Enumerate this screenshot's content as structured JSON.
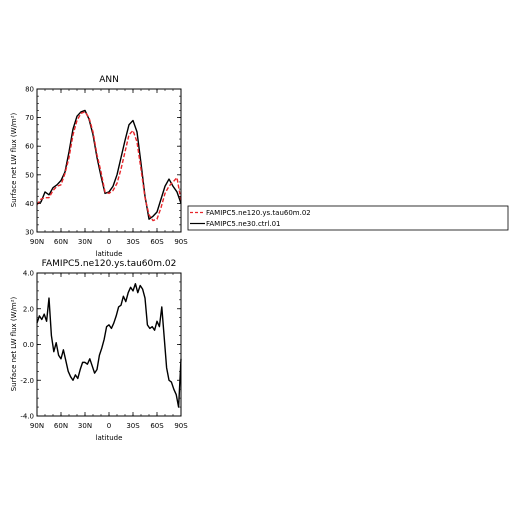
{
  "chart_data": [
    {
      "type": "line",
      "title": "ANN",
      "xlabel": "latitude",
      "ylabel": "Surface net LW flux (W/m²)",
      "ylim": [
        30,
        80
      ],
      "yticks": [
        "30",
        "40",
        "50",
        "60",
        "70",
        "80"
      ],
      "xlim": [
        90,
        -90
      ],
      "xticks": [
        "90N",
        "60N",
        "30N",
        "0",
        "30S",
        "60S",
        "90S"
      ],
      "grid": false,
      "legend_placement": "right, outside plot",
      "series": [
        {
          "name": "FAMIPC5.ne120.ys.tau60m.02",
          "color": "#e8262b",
          "dash": "dashed",
          "x": [
            90,
            85,
            80,
            75,
            70,
            65,
            60,
            55,
            50,
            45,
            40,
            35,
            30,
            25,
            20,
            15,
            10,
            5,
            0,
            -5,
            -10,
            -15,
            -20,
            -25,
            -30,
            -35,
            -40,
            -45,
            -50,
            -55,
            -60,
            -65,
            -70,
            -75,
            -80,
            -85,
            -90
          ],
          "y": [
            39.5,
            41.5,
            42,
            42,
            44.5,
            46,
            46.5,
            50.5,
            56,
            64,
            69,
            71.5,
            72,
            70,
            65,
            57,
            51,
            44,
            43.5,
            44.5,
            47,
            52,
            58,
            64,
            65.5,
            61.5,
            52,
            42,
            36,
            34,
            34.5,
            38.5,
            43.5,
            46,
            47.5,
            49,
            41
          ]
        },
        {
          "name": "FAMIPC5.ne30.ctrl.01",
          "color": "#000000",
          "dash": "solid",
          "x": [
            90,
            85,
            80,
            75,
            70,
            65,
            60,
            55,
            50,
            45,
            40,
            35,
            30,
            25,
            20,
            15,
            10,
            5,
            0,
            -5,
            -10,
            -15,
            -20,
            -25,
            -30,
            -35,
            -40,
            -45,
            -50,
            -55,
            -60,
            -65,
            -70,
            -75,
            -80,
            -85,
            -90
          ],
          "y": [
            40,
            40.5,
            44,
            43,
            45.5,
            46.5,
            48,
            51,
            58,
            66,
            70.5,
            72,
            72.5,
            69.5,
            64,
            56,
            49.5,
            43.5,
            44,
            46,
            50,
            56,
            62,
            67.5,
            69,
            65,
            54,
            42.5,
            34.5,
            35.5,
            37,
            41.5,
            46,
            48.5,
            46,
            44,
            40
          ]
        }
      ]
    },
    {
      "type": "line",
      "title": "FAMIPC5.ne120.ys.tau60m.02",
      "xlabel": "latitude",
      "ylabel": "Surface net LW flux (W/m²)",
      "ylim": [
        -4.0,
        4.0
      ],
      "yticks": [
        "-4.0",
        "-2.0",
        "0.0",
        "2.0",
        "4.0"
      ],
      "xlim": [
        90,
        -90
      ],
      "xticks": [
        "90N",
        "60N",
        "30N",
        "0",
        "30S",
        "60S",
        "90S"
      ],
      "grid": false,
      "series": [
        {
          "name": "",
          "color": "#000000",
          "dash": "solid",
          "x": [
            90,
            87,
            84,
            81,
            78,
            75,
            72,
            69,
            66,
            63,
            60,
            57,
            54,
            51,
            48,
            45,
            42,
            39,
            36,
            33,
            30,
            27,
            24,
            21,
            18,
            15,
            12,
            9,
            6,
            3,
            0,
            -3,
            -6,
            -9,
            -12,
            -15,
            -18,
            -21,
            -24,
            -27,
            -30,
            -33,
            -36,
            -39,
            -42,
            -45,
            -48,
            -51,
            -54,
            -57,
            -60,
            -63,
            -66,
            -69,
            -72,
            -75,
            -78,
            -81,
            -84,
            -87,
            -90
          ],
          "y": [
            1.2,
            1.6,
            1.4,
            1.7,
            1.3,
            2.6,
            0.5,
            -0.4,
            0.1,
            -0.6,
            -0.8,
            -0.3,
            -0.9,
            -1.5,
            -1.8,
            -2.0,
            -1.7,
            -1.9,
            -1.4,
            -1.0,
            -1.0,
            -1.1,
            -0.8,
            -1.2,
            -1.6,
            -1.4,
            -0.6,
            -0.2,
            0.3,
            1.0,
            1.1,
            0.9,
            1.2,
            1.6,
            2.1,
            2.2,
            2.7,
            2.4,
            2.9,
            3.2,
            3.0,
            3.4,
            2.9,
            3.3,
            3.1,
            2.6,
            1.1,
            0.9,
            1.0,
            0.8,
            1.3,
            1.0,
            2.1,
            0.4,
            -1.3,
            -2.0,
            -2.1,
            -2.5,
            -2.8,
            -3.5,
            -0.8
          ]
        }
      ]
    }
  ]
}
